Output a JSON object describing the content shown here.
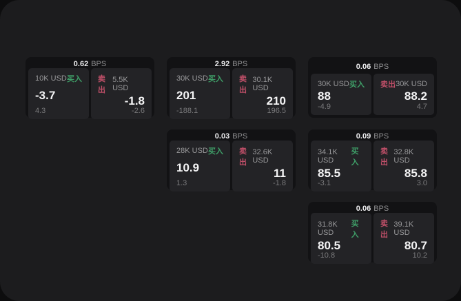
{
  "labels": {
    "bps_unit": "BPS",
    "buy": "买入",
    "sell": "卖出"
  },
  "colors": {
    "outer_bg": "#0d0d0e",
    "window_bg": "#1c1c1e",
    "card_bg": "#121214",
    "tile_bg": "#232326",
    "buy_green": "#3f9f68",
    "sell_red": "#bf4f68",
    "value_white": "#f4f4f5",
    "muted_gray": "#98989a"
  },
  "cards": [
    {
      "bps": "0.62",
      "buy": {
        "size": "10K USD",
        "value": "-3.7",
        "sub": "4.3"
      },
      "sell": {
        "size": "5.5K USD",
        "value": "-1.8",
        "sub": "-2.6"
      }
    },
    {
      "bps": "2.92",
      "buy": {
        "size": "30K USD",
        "value": "201",
        "sub": "-188.1"
      },
      "sell": {
        "size": "30.1K USD",
        "value": "210",
        "sub": "196.5"
      }
    },
    {
      "bps": "0.06",
      "buy": {
        "size": "30K USD",
        "value": "88",
        "sub": "-4.9"
      },
      "sell": {
        "size": "30K USD",
        "value": "88.2",
        "sub": "4.7"
      }
    },
    {
      "bps": "0.03",
      "buy": {
        "size": "28K USD",
        "value": "10.9",
        "sub": "1.3"
      },
      "sell": {
        "size": "32.6K USD",
        "value": "11",
        "sub": "-1.8"
      }
    },
    {
      "bps": "0.09",
      "buy": {
        "size": "34.1K USD",
        "value": "85.5",
        "sub": "-3.1"
      },
      "sell": {
        "size": "32.8K USD",
        "value": "85.8",
        "sub": "3.0"
      }
    },
    {
      "bps": "0.06",
      "buy": {
        "size": "31.8K USD",
        "value": "80.5",
        "sub": "-10.8"
      },
      "sell": {
        "size": "39.1K USD",
        "value": "80.7",
        "sub": "10.2"
      }
    }
  ]
}
